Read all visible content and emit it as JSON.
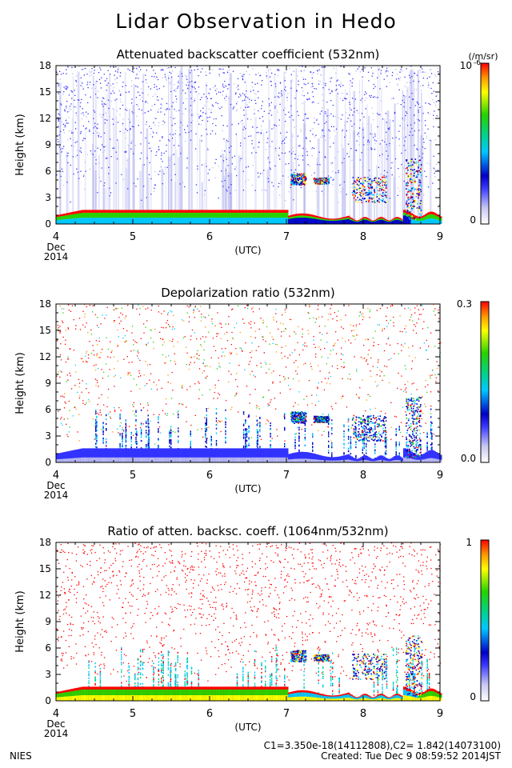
{
  "page": {
    "title": "Lidar Observation in Hedo",
    "footer_left": "NIES",
    "footer_constants": "C1=3.350e-18(14112808),C2= 1.842(14073100)",
    "footer_created": "Created: Tue Dec  9 08:59:52 2014JST"
  },
  "colorscale": [
    "#ffffff",
    "#b8b8f0",
    "#3333ff",
    "#0000c8",
    "#00c8ff",
    "#00d28c",
    "#28d200",
    "#ffff00",
    "#ff9600",
    "#ff0000"
  ],
  "chart_data": [
    {
      "type": "heatmap",
      "title": "Attenuated backscatter coefficient (532nm)",
      "ylabel": "Height (km)",
      "xlabel": "(UTC)",
      "x_ticks": [
        "4",
        "5",
        "6",
        "7",
        "8",
        "9"
      ],
      "x_sub": [
        "Dec",
        "2014"
      ],
      "xlim": [
        4,
        9
      ],
      "y_ticks": [
        "0",
        "3",
        "6",
        "9",
        "12",
        "15",
        "18"
      ],
      "ylim": [
        0,
        18
      ],
      "colorbar": {
        "unit": "(/m/sr)",
        "max_label": "10",
        "max_exponent": "-6",
        "min_label": "0"
      }
    },
    {
      "type": "heatmap",
      "title": "Depolarization ratio (532nm)",
      "ylabel": "Height (km)",
      "xlabel": "(UTC)",
      "x_ticks": [
        "4",
        "5",
        "6",
        "7",
        "8",
        "9"
      ],
      "x_sub": [
        "Dec",
        "2014"
      ],
      "xlim": [
        4,
        9
      ],
      "y_ticks": [
        "0",
        "3",
        "6",
        "9",
        "12",
        "15",
        "18"
      ],
      "ylim": [
        0,
        18
      ],
      "colorbar": {
        "unit": "",
        "max_label": "0.3",
        "max_exponent": "",
        "min_label": "0.0"
      }
    },
    {
      "type": "heatmap",
      "title": "Ratio of atten. backsc. coeff. (1064nm/532nm)",
      "ylabel": "Height (km)",
      "xlabel": "(UTC)",
      "x_ticks": [
        "4",
        "5",
        "6",
        "7",
        "8",
        "9"
      ],
      "x_sub": [
        "Dec",
        "2014"
      ],
      "xlim": [
        4,
        9
      ],
      "y_ticks": [
        "0",
        "3",
        "6",
        "9",
        "12",
        "15",
        "18"
      ],
      "ylim": [
        0,
        18
      ],
      "colorbar": {
        "unit": "",
        "max_label": "1",
        "max_exponent": "",
        "min_label": "0"
      }
    }
  ]
}
